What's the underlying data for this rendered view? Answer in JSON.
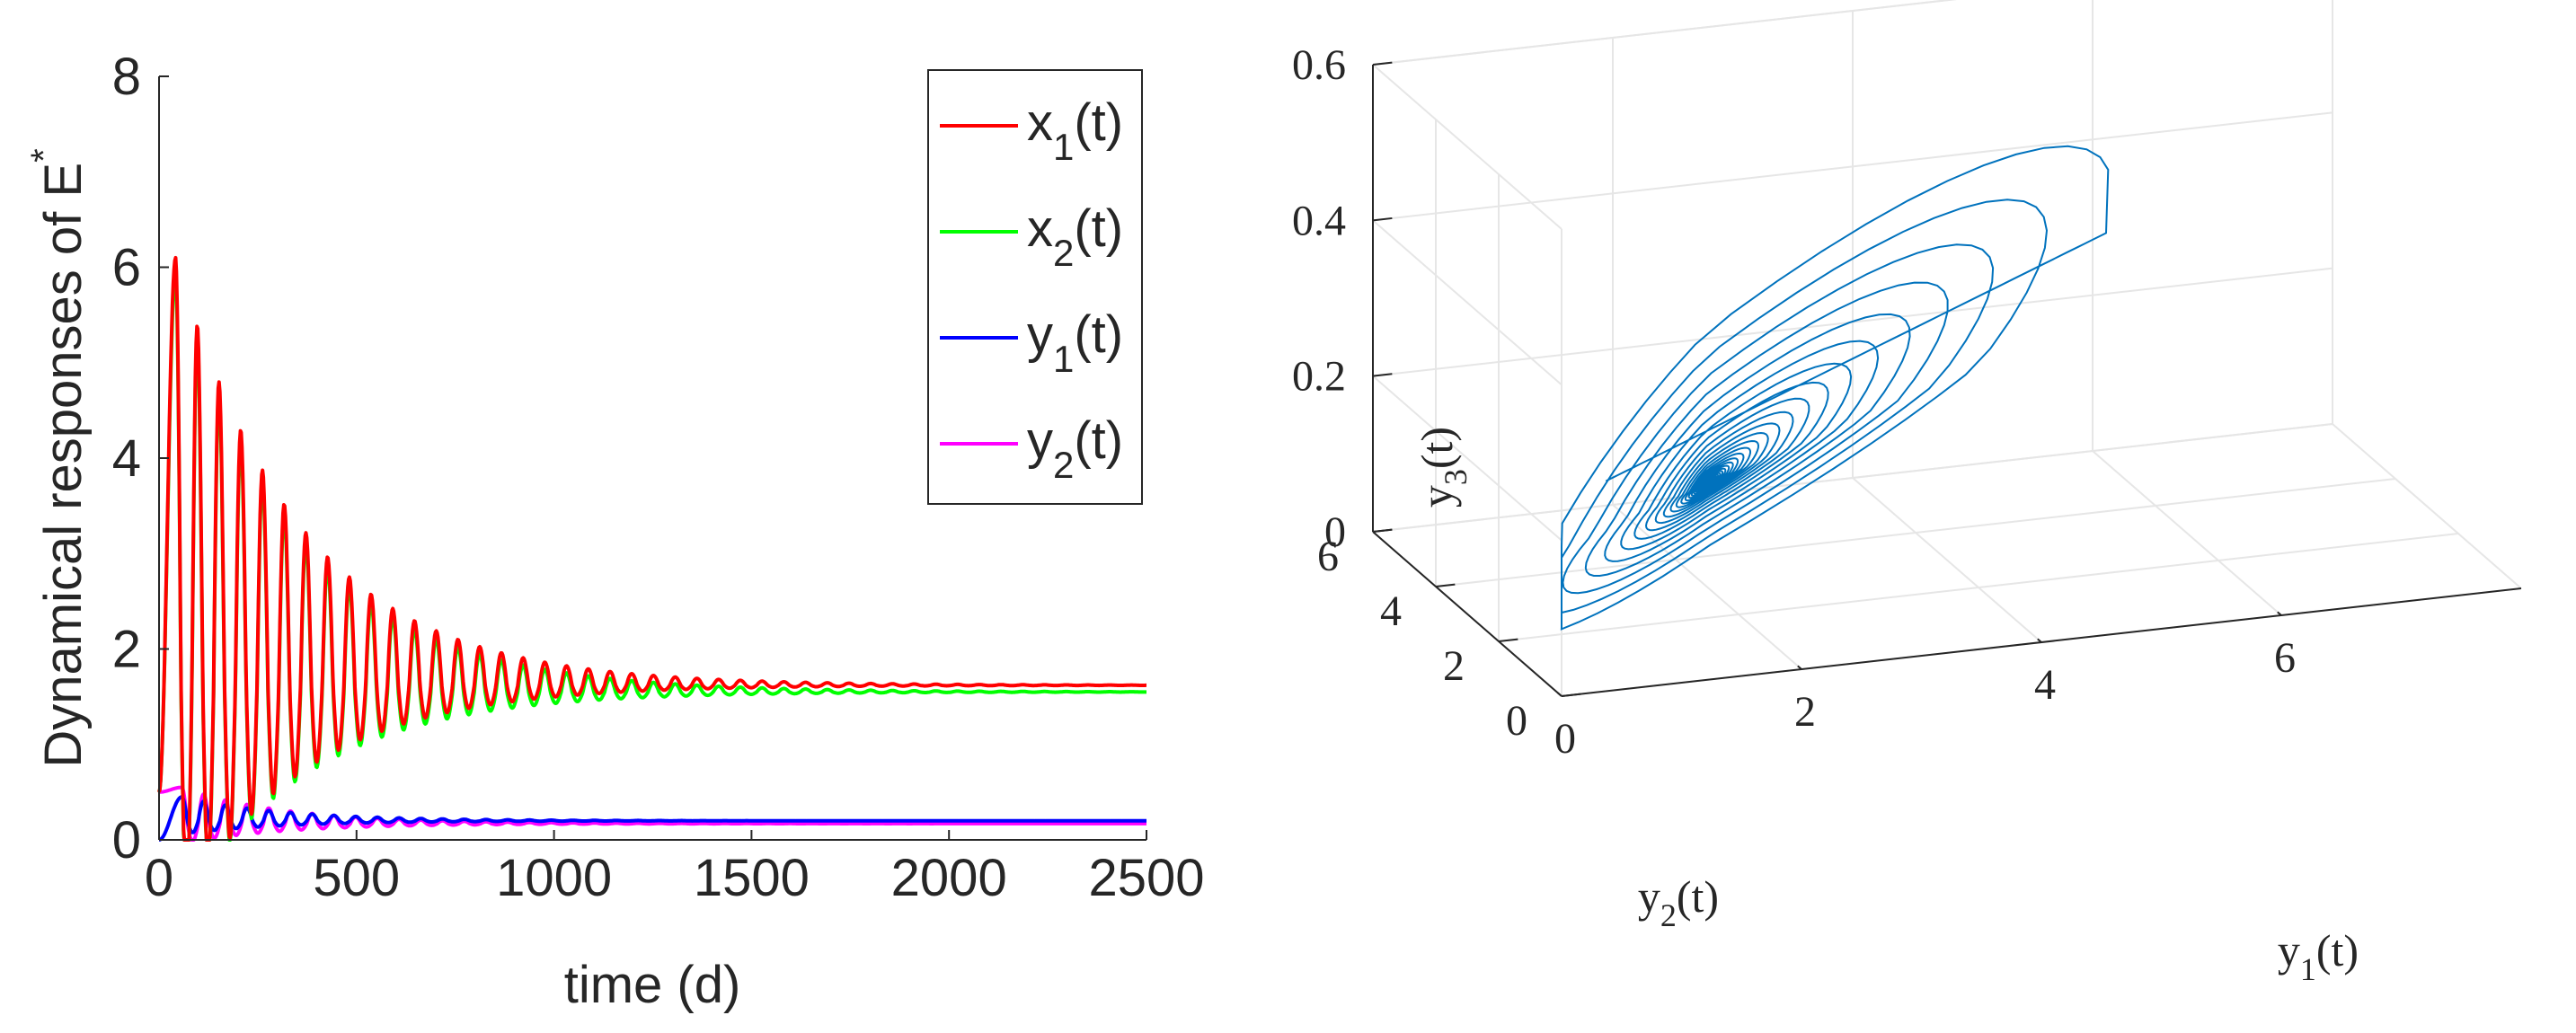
{
  "chart_data": [
    {
      "type": "line",
      "xlabel": "time (d)",
      "ylabel": "Dynamical responses of E",
      "ylabel_sup": "*",
      "xlim": [
        0,
        2500
      ],
      "ylim": [
        0,
        8
      ],
      "xticks": [
        0,
        500,
        1000,
        1500,
        2000,
        2500
      ],
      "yticks": [
        0,
        2,
        4,
        6,
        8
      ],
      "x_tick_labels": [
        "0",
        "500",
        "1000",
        "1500",
        "2000",
        "2500"
      ],
      "y_tick_labels": [
        "0",
        "2",
        "4",
        "6",
        "8"
      ],
      "legend_position": "top-right",
      "x_sample_step": 2,
      "series": [
        {
          "name": "x1(t)",
          "label_base": "x",
          "label_sub": "1",
          "label_tail": "(t)",
          "color": "#ff0000",
          "start": 0.5,
          "first_peak": 6.1,
          "period": 55,
          "phase": 42,
          "equilibrium": 1.62,
          "decay": 320
        },
        {
          "name": "x2(t)",
          "label_base": "x",
          "label_sub": "2",
          "label_tail": "(t)",
          "color": "#00ff00",
          "start": 0.5,
          "first_peak": 5.95,
          "period": 55,
          "phase": 42,
          "equilibrium": 1.55,
          "decay": 320
        },
        {
          "name": "y1(t)",
          "label_base": "y",
          "label_sub": "1",
          "label_tail": "(t)",
          "color": "#0000ff",
          "start": 0.0,
          "first_peak": 0.45,
          "period": 55,
          "phase": 58,
          "equilibrium": 0.2,
          "decay": 260
        },
        {
          "name": "y2(t)",
          "label_base": "y",
          "label_sub": "2",
          "label_tail": "(t)",
          "color": "#ff00ff",
          "start": 0.5,
          "first_peak": 0.55,
          "period": 55,
          "phase": 58,
          "equilibrium": 0.17,
          "decay": 260
        }
      ]
    },
    {
      "type": "line3d",
      "xlabel": "y1(t)",
      "xlabel_base": "y",
      "xlabel_sub": "1",
      "xlabel_tail": "(t)",
      "ylabel": "y2(t)",
      "ylabel_base": "y",
      "ylabel_sub": "2",
      "ylabel_tail": "(t)",
      "zlabel": "y3(t)",
      "zlabel_base": "y",
      "zlabel_sub": "3",
      "zlabel_tail": "(t)",
      "xlim": [
        0,
        8
      ],
      "ylim": [
        0,
        6
      ],
      "zlim": [
        0,
        0.6
      ],
      "xticks": [
        0,
        2,
        4,
        6
      ],
      "yticks": [
        0,
        2,
        4,
        6
      ],
      "zticks": [
        0,
        0.2,
        0.4,
        0.6
      ],
      "x_tick_labels": [
        "0",
        "2",
        "4",
        "6"
      ],
      "y_tick_labels": [
        "0",
        "2",
        "4",
        "6"
      ],
      "z_tick_labels": [
        "0",
        "0.2",
        "0.4",
        "0.6"
      ],
      "grid": true,
      "line_color": "#0072bd",
      "trajectory": {
        "equilibrium": [
          1.62,
          1.55,
          0.19
        ],
        "first_peak": [
          6.1,
          5.95,
          0.45
        ],
        "start": [
          0.5,
          0.5,
          0.25
        ],
        "loops": 34,
        "decay": 320,
        "period": 55
      }
    }
  ]
}
